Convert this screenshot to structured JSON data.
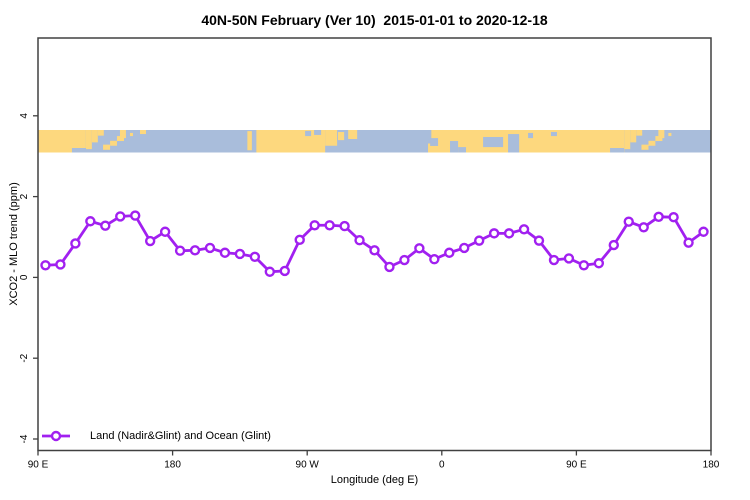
{
  "title": "40N-50N February (Ver 10)  2015-01-01 to 2020-12-18",
  "axes": {
    "x": {
      "label": "Longitude (deg E)",
      "ticks": [
        {
          "axis_deg": 0,
          "label": "90 E"
        },
        {
          "axis_deg": 90,
          "label": "180"
        },
        {
          "axis_deg": 180,
          "label": "90 W"
        },
        {
          "axis_deg": 270,
          "label": "0"
        },
        {
          "axis_deg": 360,
          "label": "90 E"
        },
        {
          "axis_deg": 450,
          "label": "180"
        }
      ],
      "range_note": "axis starts at 90 deg E and wraps eastward 450 degrees to 180"
    },
    "y": {
      "label": "XCO2 - MLO trend (ppm)",
      "ticks": [
        {
          "value": -4,
          "label": "-4"
        },
        {
          "value": -2,
          "label": "-2"
        },
        {
          "value": 0,
          "label": "0"
        },
        {
          "value": 2,
          "label": "2"
        },
        {
          "value": 4,
          "label": "4"
        }
      ],
      "range": [
        -4.3,
        5.9
      ]
    }
  },
  "legend": {
    "items": [
      {
        "label": "Land (Nadir&Glint) and Ocean (Glint)",
        "marker": "open-circle-line",
        "color": "#A120F0"
      }
    ]
  },
  "colors": {
    "series": "#A120F0",
    "land": "#FDD87E",
    "ocean": "#A9BDDB",
    "frame": "#404040",
    "text": "#000000"
  },
  "chart_data": {
    "type": "line",
    "title": "40N-50N February (Ver 10)  2015-01-01 to 2020-12-18",
    "xlabel": "Longitude (deg E)",
    "ylabel": "XCO2 - MLO trend (ppm)",
    "x_axis_deg": [
      5,
      15,
      25,
      35,
      45,
      55,
      65,
      75,
      85,
      95,
      105,
      115,
      125,
      135,
      145,
      155,
      165,
      175,
      185,
      195,
      205,
      215,
      225,
      235,
      245,
      255,
      265,
      275,
      285,
      295,
      305,
      315,
      325,
      335,
      345,
      355,
      365,
      375,
      385,
      395,
      405,
      415,
      425,
      435,
      445
    ],
    "x_note": "degrees east of 90E along axis; data every 10 degrees of longitude",
    "series": [
      {
        "name": "Land (Nadir&Glint) and Ocean (Glint)",
        "marker": "open-circle",
        "values": [
          0.3,
          0.32,
          0.84,
          1.39,
          1.28,
          1.51,
          1.53,
          0.9,
          1.13,
          0.66,
          0.67,
          0.73,
          0.61,
          0.58,
          0.51,
          0.14,
          0.16,
          0.93,
          1.29,
          1.29,
          1.27,
          0.92,
          0.67,
          0.26,
          0.43,
          0.72,
          0.45,
          0.61,
          0.73,
          0.91,
          1.09,
          1.09,
          1.19,
          0.91,
          0.43,
          0.47,
          0.3,
          0.35,
          0.8,
          1.38,
          1.24,
          1.5,
          1.49,
          0.86,
          1.13
        ]
      }
    ],
    "ylim_drawn": [
      -4.3,
      5.9
    ],
    "grid": false,
    "legend_position": "bottom-left",
    "map_strip": {
      "description": "world land/ocean band for latitude 40N-50N drawn across plot at y approx 3.1 to 3.6 ppm",
      "y_data_range": [
        3.08,
        3.64
      ],
      "land_rects_axisdeg_frac": [
        [
          0,
          32,
          0,
          1
        ],
        [
          32,
          36,
          0,
          0.85
        ],
        [
          36,
          40,
          0,
          0.55
        ],
        [
          40,
          44,
          0,
          0.25
        ],
        [
          43.5,
          48.2,
          0.65,
          0.88
        ],
        [
          48.2,
          52.8,
          0.48,
          0.7
        ],
        [
          52.8,
          57.5,
          0.27,
          0.49
        ],
        [
          54.8,
          58.8,
          0,
          0.36
        ],
        [
          61.5,
          63.5,
          0.13,
          0.27
        ],
        [
          68.2,
          72.2,
          0,
          0.18
        ],
        [
          140,
          143,
          0.05,
          0.9
        ],
        [
          146,
          192,
          0,
          1
        ],
        [
          192,
          200,
          0,
          0.7
        ],
        [
          200.6,
          204.7,
          0.09,
          0.45
        ],
        [
          207.4,
          213.4,
          0,
          0.4
        ],
        [
          260.8,
          263.5,
          0.6,
          1
        ],
        [
          263,
          392,
          0,
          1
        ],
        [
          392,
          396,
          0,
          0.85
        ],
        [
          396,
          400,
          0,
          0.55
        ],
        [
          400,
          404,
          0,
          0.25
        ],
        [
          403.5,
          408.2,
          0.65,
          0.88
        ],
        [
          408.2,
          412.8,
          0.48,
          0.7
        ],
        [
          412.8,
          417.5,
          0.27,
          0.49
        ],
        [
          414.8,
          418.8,
          0,
          0.36
        ],
        [
          421.5,
          423.5,
          0.13,
          0.27
        ]
      ],
      "water_rects_axisdeg_frac": [
        [
          22.7,
          32.1,
          0.8,
          1
        ],
        [
          178.6,
          182.6,
          0.04,
          0.27
        ],
        [
          184.6,
          189.3,
          0,
          0.22
        ],
        [
          262.2,
          267.5,
          0.36,
          0.71
        ],
        [
          275.5,
          280.9,
          0.49,
          1
        ],
        [
          280.9,
          286.2,
          0.76,
          1
        ],
        [
          297.6,
          311.0,
          0.31,
          0.76
        ],
        [
          314.3,
          321.7,
          0.18,
          1
        ],
        [
          327.7,
          331.0,
          0.13,
          0.36
        ],
        [
          343.0,
          347.0,
          0.09,
          0.27
        ],
        [
          382.5,
          391.9,
          0.8,
          1
        ]
      ]
    }
  }
}
